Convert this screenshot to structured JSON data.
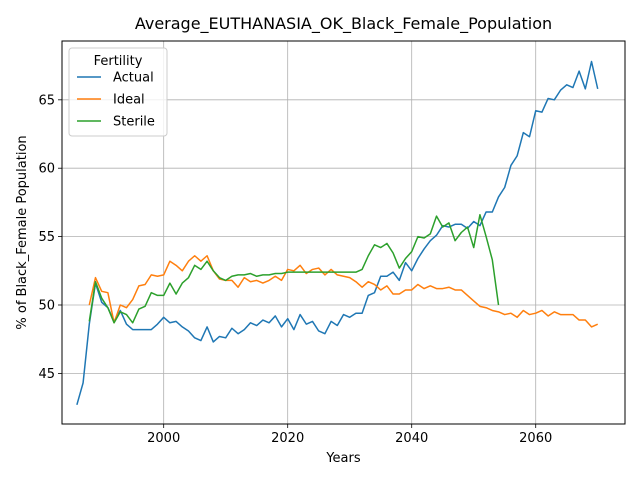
{
  "chart_data": {
    "type": "line",
    "title": "Average_EUTHANASIA_OK_Black_Female_Population",
    "xlabel": "Years",
    "ylabel": "% of Black_Female Population",
    "xlim": [
      1983.6,
      2074.4
    ],
    "ylim": [
      41.3,
      69.3
    ],
    "xticks": [
      2000,
      2020,
      2040,
      2060
    ],
    "yticks": [
      45,
      50,
      55,
      60,
      65
    ],
    "grid": true,
    "legend": {
      "title": "Fertility",
      "placement": "top-left"
    },
    "series": [
      {
        "name": "Actual",
        "color": "#1f77b4",
        "x": [
          1986,
          1987,
          1988,
          1989,
          1990,
          1991,
          1992,
          1993,
          1994,
          1995,
          1996,
          1997,
          1998,
          1999,
          2000,
          2001,
          2002,
          2003,
          2004,
          2005,
          2006,
          2007,
          2008,
          2009,
          2010,
          2011,
          2012,
          2013,
          2014,
          2015,
          2016,
          2017,
          2018,
          2019,
          2020,
          2021,
          2022,
          2023,
          2024,
          2025,
          2026,
          2027,
          2028,
          2029,
          2030,
          2031,
          2032,
          2033,
          2034,
          2035,
          2036,
          2037,
          2038,
          2039,
          2040,
          2041,
          2042,
          2043,
          2044,
          2045,
          2046,
          2047,
          2048,
          2049,
          2050,
          2051,
          2052,
          2053,
          2054,
          2055,
          2056,
          2057,
          2058,
          2059,
          2060,
          2061,
          2062,
          2063,
          2064,
          2065,
          2066,
          2067,
          2068,
          2069,
          2070
        ],
        "values": [
          42.7,
          44.3,
          48.6,
          51.6,
          50.2,
          49.8,
          48.8,
          49.6,
          48.6,
          48.2,
          48.2,
          48.2,
          48.2,
          48.6,
          49.1,
          48.7,
          48.8,
          48.4,
          48.1,
          47.6,
          47.4,
          48.4,
          47.3,
          47.7,
          47.6,
          48.3,
          47.9,
          48.2,
          48.7,
          48.5,
          48.9,
          48.7,
          49.2,
          48.4,
          49.0,
          48.2,
          49.3,
          48.6,
          48.8,
          48.1,
          47.9,
          48.8,
          48.5,
          49.3,
          49.1,
          49.4,
          49.4,
          50.7,
          50.9,
          52.1,
          52.1,
          52.4,
          51.8,
          53.1,
          52.5,
          53.4,
          54.1,
          54.7,
          55.1,
          55.8,
          55.7,
          55.9,
          55.9,
          55.6,
          56.1,
          55.8,
          56.8,
          56.8,
          57.9,
          58.6,
          60.2,
          60.9,
          62.6,
          62.3,
          64.2,
          64.1,
          65.1,
          65.0,
          65.7,
          66.1,
          65.9,
          67.1,
          65.8,
          67.8,
          65.8
        ]
      },
      {
        "name": "Ideal",
        "color": "#ff7f0e",
        "x": [
          1988,
          1989,
          1990,
          1991,
          1992,
          1993,
          1994,
          1995,
          1996,
          1997,
          1998,
          1999,
          2000,
          2001,
          2002,
          2003,
          2004,
          2005,
          2006,
          2007,
          2008,
          2009,
          2010,
          2011,
          2012,
          2013,
          2014,
          2015,
          2016,
          2017,
          2018,
          2019,
          2020,
          2021,
          2022,
          2023,
          2024,
          2025,
          2026,
          2027,
          2028,
          2029,
          2030,
          2031,
          2032,
          2033,
          2034,
          2035,
          2036,
          2037,
          2038,
          2039,
          2040,
          2041,
          2042,
          2043,
          2044,
          2045,
          2046,
          2047,
          2048,
          2049,
          2050,
          2051,
          2052,
          2053,
          2054,
          2055,
          2056,
          2057,
          2058,
          2059,
          2060,
          2061,
          2062,
          2063,
          2064,
          2065,
          2066,
          2067,
          2068,
          2069,
          2070
        ],
        "values": [
          50.0,
          52.0,
          51.0,
          50.9,
          48.7,
          50.0,
          49.8,
          50.4,
          51.4,
          51.5,
          52.2,
          52.1,
          52.2,
          53.2,
          52.9,
          52.5,
          53.2,
          53.6,
          53.2,
          53.6,
          52.5,
          51.9,
          51.8,
          51.8,
          51.3,
          52.0,
          51.7,
          51.8,
          51.6,
          51.8,
          52.1,
          51.8,
          52.6,
          52.5,
          52.9,
          52.3,
          52.6,
          52.7,
          52.2,
          52.6,
          52.2,
          52.1,
          52.0,
          51.7,
          51.3,
          51.7,
          51.5,
          51.1,
          51.4,
          50.8,
          50.8,
          51.1,
          51.1,
          51.5,
          51.2,
          51.4,
          51.2,
          51.2,
          51.3,
          51.1,
          51.1,
          50.7,
          50.3,
          49.9,
          49.8,
          49.6,
          49.5,
          49.3,
          49.4,
          49.1,
          49.6,
          49.3,
          49.4,
          49.6,
          49.2,
          49.5,
          49.3,
          49.3,
          49.3,
          48.9,
          48.9,
          48.4,
          48.6
        ]
      },
      {
        "name": "Sterile",
        "color": "#2ca02c",
        "x": [
          1988,
          1989,
          1990,
          1991,
          1992,
          1993,
          1994,
          1995,
          1996,
          1997,
          1998,
          1999,
          2000,
          2001,
          2002,
          2003,
          2004,
          2005,
          2006,
          2007,
          2008,
          2009,
          2010,
          2011,
          2012,
          2013,
          2014,
          2015,
          2016,
          2017,
          2018,
          2019,
          2020,
          2021,
          2022,
          2023,
          2024,
          2025,
          2026,
          2027,
          2028,
          2029,
          2030,
          2031,
          2032,
          2033,
          2034,
          2035,
          2036,
          2037,
          2038,
          2039,
          2040,
          2041,
          2042,
          2043,
          2044,
          2045,
          2046,
          2047,
          2048,
          2049,
          2050,
          2051,
          2052,
          2053,
          2054
        ],
        "values": [
          48.8,
          51.7,
          50.5,
          49.8,
          48.7,
          49.5,
          49.3,
          48.7,
          49.7,
          49.9,
          50.9,
          50.7,
          50.7,
          51.6,
          50.8,
          51.6,
          52.0,
          52.9,
          52.6,
          53.2,
          52.5,
          52.0,
          51.8,
          52.1,
          52.2,
          52.2,
          52.3,
          52.1,
          52.2,
          52.2,
          52.3,
          52.3,
          52.4,
          52.4,
          52.4,
          52.4,
          52.4,
          52.4,
          52.4,
          52.4,
          52.4,
          52.4,
          52.4,
          52.4,
          52.6,
          53.6,
          54.4,
          54.2,
          54.5,
          53.8,
          52.7,
          53.4,
          53.9,
          55.0,
          54.9,
          55.2,
          56.5,
          55.7,
          56.0,
          54.7,
          55.3,
          55.7,
          54.2,
          56.6,
          55.0,
          53.3,
          50.0
        ]
      }
    ]
  }
}
